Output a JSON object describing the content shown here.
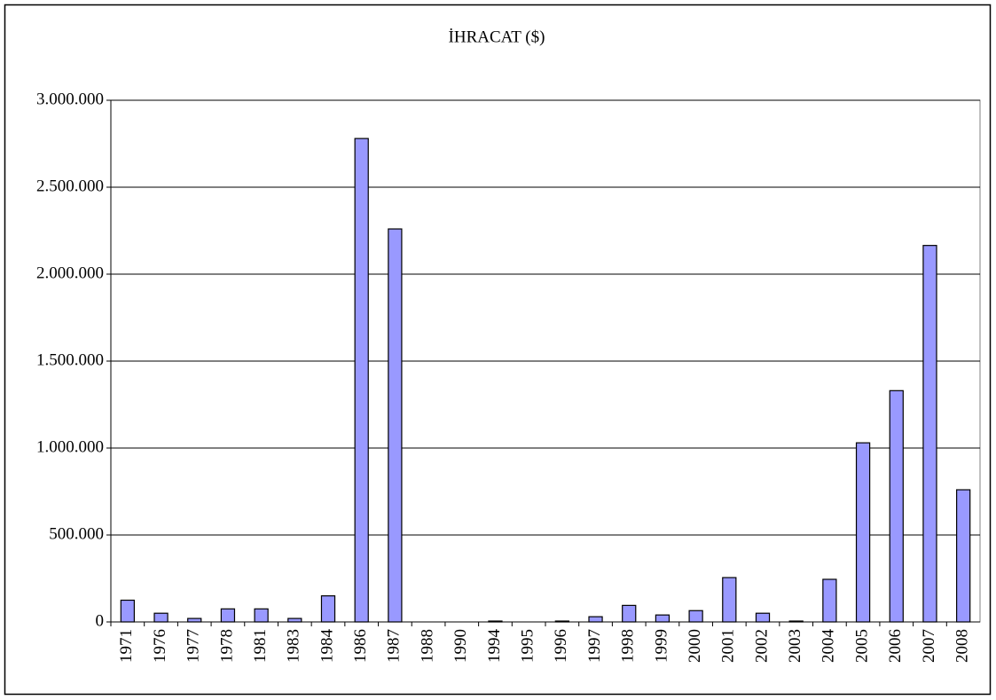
{
  "chart_data": {
    "type": "bar",
    "title": "İHRACAT ($)",
    "categories": [
      "1971",
      "1976",
      "1977",
      "1978",
      "1981",
      "1983",
      "1984",
      "1986",
      "1987",
      "1988",
      "1990",
      "1994",
      "1995",
      "1996",
      "1997",
      "1998",
      "1999",
      "2000",
      "2001",
      "2002",
      "2003",
      "2004",
      "2005",
      "2006",
      "2007",
      "2008"
    ],
    "values": [
      125000,
      50000,
      20000,
      75000,
      75000,
      20000,
      150000,
      2780000,
      2260000,
      0,
      0,
      5000,
      0,
      5000,
      30000,
      95000,
      40000,
      65000,
      255000,
      50000,
      5000,
      245000,
      1030000,
      1330000,
      2165000,
      760000
    ],
    "color": "#9999ff",
    "ylim": [
      0,
      3000000
    ],
    "yticks": [
      0,
      {
        "value": 500000,
        "label": "500.000"
      },
      {
        "value": 1000000,
        "label": "1.000.000"
      },
      {
        "value": 1500000,
        "label": "1.500.000"
      },
      {
        "value": 2000000,
        "label": "2.000.000"
      },
      {
        "value": 2500000,
        "label": "2.500.000"
      },
      {
        "value": 3000000,
        "label": "3.000.000"
      }
    ],
    "grid": true
  }
}
